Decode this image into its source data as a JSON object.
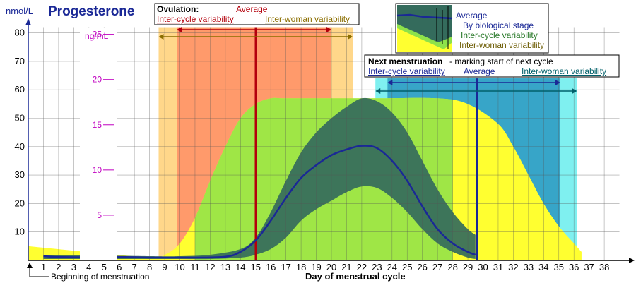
{
  "chart_data": {
    "type": "area",
    "title": "Progesterone",
    "ylabel": "nmol/L",
    "ylabel2": "ng/mL",
    "xlabel": "Day of menstrual cycle",
    "xlim": [
      0,
      39
    ],
    "ylim": [
      0,
      82
    ],
    "x_ticks": [
      1,
      2,
      3,
      4,
      5,
      6,
      7,
      8,
      9,
      10,
      11,
      12,
      13,
      14,
      15,
      16,
      17,
      18,
      19,
      20,
      21,
      22,
      23,
      24,
      25,
      26,
      27,
      28,
      29,
      30,
      31,
      32,
      33,
      34,
      35,
      36,
      37,
      38
    ],
    "y_ticks": [
      10,
      20,
      30,
      40,
      50,
      60,
      70,
      80
    ],
    "ng_ticks": [
      5,
      10,
      15,
      20,
      25
    ],
    "grid": true,
    "series": [
      {
        "name": "Average",
        "x": [
          1,
          2,
          4,
          6,
          8,
          9,
          11,
          13,
          14,
          15,
          16,
          17,
          18,
          19,
          20,
          21,
          22,
          23,
          24,
          25,
          26,
          27,
          28,
          29,
          29.5
        ],
        "values": [
          1.5,
          1.2,
          1.1,
          1.2,
          1,
          1,
          1,
          1.3,
          3,
          7,
          14,
          22,
          29,
          33.5,
          37,
          39,
          40.3,
          39.5,
          35,
          28,
          19,
          11,
          6,
          3,
          2
        ]
      },
      {
        "name": "Inter-cycle variability",
        "x": [
          1,
          8,
          10,
          12,
          14,
          15,
          16,
          17,
          18,
          19,
          20,
          21,
          22,
          23,
          24,
          25,
          26,
          27,
          28,
          29,
          29.5
        ],
        "upper": [
          2,
          1.5,
          1.5,
          2,
          4,
          8,
          17,
          28,
          38,
          45,
          50,
          54,
          57,
          56,
          52,
          45,
          35,
          25,
          17,
          11,
          9
        ],
        "lower": [
          0.5,
          0.5,
          0.5,
          0.5,
          1,
          2,
          4,
          8,
          14,
          18,
          21,
          24,
          26,
          25.5,
          22,
          17,
          11,
          6,
          3,
          1,
          0.5
        ]
      },
      {
        "name": "Inter-woman variability",
        "x": [
          0,
          8,
          9,
          10,
          11,
          12,
          13,
          14,
          15,
          16,
          17,
          20,
          23,
          27,
          29,
          31,
          32,
          33,
          34,
          35,
          36,
          36.5
        ],
        "upper": [
          5,
          1,
          2,
          6,
          15,
          28,
          40,
          50,
          55,
          57,
          57,
          57,
          57,
          57,
          55,
          48,
          40,
          30,
          20,
          12,
          6,
          3
        ],
        "lower": [
          0,
          0,
          0,
          0,
          0,
          0,
          0,
          0,
          0,
          0,
          0,
          0,
          0,
          0,
          0,
          0,
          0,
          0,
          0,
          0,
          0,
          0
        ]
      }
    ],
    "ovulation": {
      "heading": "Ovulation:",
      "average_label": "Average",
      "average_day": 15,
      "inter_cycle_label": "Inter-cycle variability",
      "inter_cycle_range": [
        9.8,
        20
      ],
      "inter_woman_label": "Inter-woman variability",
      "inter_woman_range": [
        8.6,
        21.4
      ]
    },
    "menstruation": {
      "heading": "Next menstruation",
      "subheading": " - marking start of next cycle",
      "inter_cycle_label": "Inter-cycle variability",
      "average_label": "Average",
      "inter_woman_label": "Inter-woman variability",
      "average_day": 29.6,
      "inter_cycle_range": [
        23.7,
        35.1
      ],
      "inter_woman_range": [
        22.9,
        36.2
      ]
    },
    "legend": {
      "placement": "top-right",
      "entries": [
        "Average",
        "By biological stage",
        "Inter-cycle variability",
        "Inter-woman variability"
      ]
    },
    "annotation": "Beginning of menstruation"
  },
  "colors": {
    "average_line": "#1a2896",
    "inter_cycle_fill": "#346b5c",
    "inter_woman_fill": "#8fbc8f",
    "ovulation_inter_woman": "#ffd78a",
    "ovulation_inter_cycle": "#ff9a6b",
    "ovulation_line": "#b3000c",
    "menstruation_inter_woman": "#7ff0f0",
    "menstruation_inter_cycle": "#37a5c8",
    "stage_yellow": "#ffff30",
    "stage_green": "#8ee24a",
    "stage_orange": "#ffa832",
    "menstruation_line": "#1a2896",
    "title": "#1a2896",
    "ng_axis": "#c000c0"
  }
}
